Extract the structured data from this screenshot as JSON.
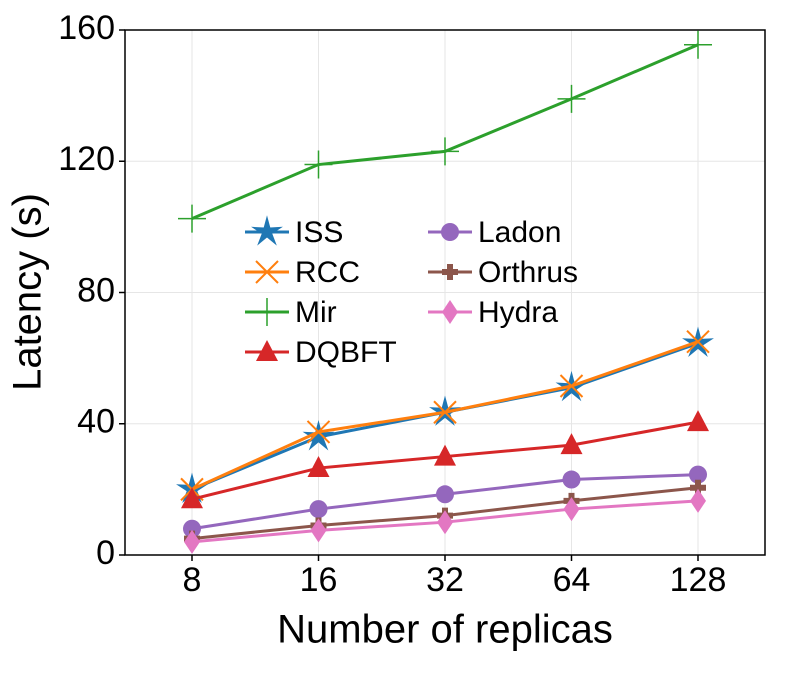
{
  "chart_data": {
    "type": "line",
    "x_label": "Number of replicas",
    "y_label": "Latency (s)",
    "categories": [
      "8",
      "16",
      "32",
      "64",
      "128"
    ],
    "series": [
      {
        "name": "ISS",
        "color": "#1f77b4",
        "marker": "star",
        "values": [
          20,
          36,
          43.5,
          51,
          64.5
        ]
      },
      {
        "name": "RCC",
        "color": "#ff7f0e",
        "marker": "x",
        "values": [
          20,
          37.5,
          43.5,
          51.5,
          65
        ]
      },
      {
        "name": "Mir",
        "color": "#2ca02c",
        "marker": "plus",
        "values": [
          102.5,
          119,
          123,
          139,
          155.5
        ]
      },
      {
        "name": "DQBFT",
        "color": "#d62728",
        "marker": "triangle",
        "values": [
          17,
          26.5,
          30,
          33.5,
          40.5
        ]
      },
      {
        "name": "Ladon",
        "color": "#9467bd",
        "marker": "circle",
        "values": [
          8,
          14,
          18.5,
          23,
          24.5
        ]
      },
      {
        "name": "Orthrus",
        "color": "#8c564b",
        "marker": "thickplus",
        "values": [
          5,
          9,
          12,
          16.5,
          20.5
        ]
      },
      {
        "name": "Hydra",
        "color": "#e377c2",
        "marker": "diamond",
        "values": [
          4,
          7.5,
          10,
          14,
          16.5
        ]
      }
    ],
    "ylim": [
      0,
      160
    ],
    "yticks": [
      0,
      40,
      80,
      120,
      160
    ],
    "grid": true
  }
}
